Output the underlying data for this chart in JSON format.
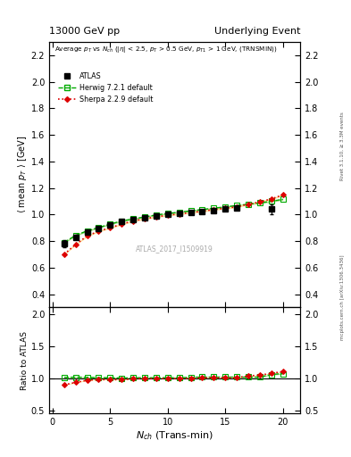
{
  "title_left": "13000 GeV pp",
  "title_right": "Underlying Event",
  "ylabel_main": "⟨ mean p_T ⟩ [GeV]",
  "ylabel_ratio": "Ratio to ATLAS",
  "xlabel": "N_{ch} (Trans-min)",
  "watermark": "ATLAS_2017_I1509919",
  "right_label1": "Rivet 3.1.10, ≥ 3.3M events",
  "right_label2": "mcplots.cern.ch [arXiv:1306.3436]",
  "ylim_main": [
    0.3,
    2.3
  ],
  "ylim_ratio": [
    0.45,
    2.1
  ],
  "yticks_main": [
    0.4,
    0.6,
    0.8,
    1.0,
    1.2,
    1.4,
    1.6,
    1.8,
    2.0,
    2.2
  ],
  "yticks_ratio": [
    0.5,
    1.0,
    1.5,
    2.0
  ],
  "xlim": [
    -0.3,
    21.5
  ],
  "xticks": [
    0,
    5,
    10,
    15,
    20
  ],
  "atlas_x": [
    1,
    2,
    3,
    4,
    5,
    6,
    7,
    8,
    9,
    10,
    11,
    12,
    13,
    14,
    15,
    16,
    19
  ],
  "atlas_y": [
    0.78,
    0.83,
    0.865,
    0.895,
    0.92,
    0.95,
    0.96,
    0.975,
    0.99,
    1.0,
    1.01,
    1.015,
    1.02,
    1.03,
    1.04,
    1.05,
    1.04
  ],
  "atlas_yerr": [
    0.025,
    0.018,
    0.013,
    0.011,
    0.01,
    0.009,
    0.009,
    0.008,
    0.008,
    0.008,
    0.008,
    0.009,
    0.009,
    0.01,
    0.011,
    0.013,
    0.035
  ],
  "herwig_x": [
    1,
    2,
    3,
    4,
    5,
    6,
    7,
    8,
    9,
    10,
    11,
    12,
    13,
    14,
    15,
    16,
    17,
    18,
    19,
    20
  ],
  "herwig_y": [
    0.79,
    0.843,
    0.877,
    0.902,
    0.928,
    0.952,
    0.967,
    0.982,
    0.997,
    1.008,
    1.018,
    1.028,
    1.038,
    1.048,
    1.058,
    1.068,
    1.078,
    1.088,
    1.1,
    1.115
  ],
  "herwig_band_lo": [
    0.784,
    0.837,
    0.871,
    0.896,
    0.922,
    0.946,
    0.961,
    0.976,
    0.991,
    1.002,
    1.012,
    1.022,
    1.032,
    1.042,
    1.052,
    1.062,
    1.072,
    1.082,
    1.094,
    1.108
  ],
  "herwig_band_hi": [
    0.796,
    0.849,
    0.883,
    0.908,
    0.934,
    0.958,
    0.973,
    0.988,
    1.003,
    1.014,
    1.024,
    1.034,
    1.044,
    1.054,
    1.064,
    1.074,
    1.084,
    1.094,
    1.106,
    1.122
  ],
  "sherpa_x": [
    1,
    2,
    3,
    4,
    5,
    6,
    7,
    8,
    9,
    10,
    11,
    12,
    13,
    14,
    15,
    16,
    17,
    18,
    19,
    20
  ],
  "sherpa_y": [
    0.7,
    0.775,
    0.838,
    0.875,
    0.9,
    0.928,
    0.952,
    0.968,
    0.983,
    0.995,
    1.005,
    1.015,
    1.025,
    1.038,
    1.048,
    1.058,
    1.078,
    1.095,
    1.118,
    1.148
  ],
  "sherpa_band_lo": [
    0.694,
    0.769,
    0.832,
    0.869,
    0.894,
    0.922,
    0.946,
    0.962,
    0.977,
    0.989,
    0.999,
    1.009,
    1.019,
    1.032,
    1.042,
    1.052,
    1.072,
    1.089,
    1.112,
    1.142
  ],
  "sherpa_band_hi": [
    0.706,
    0.781,
    0.844,
    0.881,
    0.906,
    0.934,
    0.958,
    0.974,
    0.989,
    1.001,
    1.011,
    1.021,
    1.031,
    1.044,
    1.054,
    1.064,
    1.084,
    1.101,
    1.124,
    1.154
  ],
  "herwig_ratio_y": [
    1.013,
    1.016,
    1.014,
    1.008,
    1.009,
    1.002,
    1.007,
    1.007,
    1.007,
    1.008,
    1.008,
    1.013,
    1.018,
    1.017,
    1.017,
    1.017,
    1.017,
    1.017,
    1.058,
    1.072
  ],
  "herwig_ratio_band_lo": [
    1.005,
    1.008,
    1.007,
    1.001,
    1.002,
    0.996,
    1.001,
    1.001,
    1.001,
    1.002,
    1.002,
    1.007,
    1.012,
    1.011,
    1.011,
    1.011,
    1.011,
    1.011,
    1.05,
    1.06
  ],
  "herwig_ratio_band_hi": [
    1.021,
    1.024,
    1.021,
    1.015,
    1.016,
    1.008,
    1.013,
    1.013,
    1.013,
    1.014,
    1.014,
    1.019,
    1.024,
    1.023,
    1.023,
    1.023,
    1.023,
    1.023,
    1.066,
    1.084
  ],
  "sherpa_ratio_y": [
    0.897,
    0.934,
    0.968,
    0.978,
    0.978,
    0.977,
    0.992,
    0.993,
    0.993,
    0.995,
    0.995,
    1.0,
    1.005,
    1.008,
    1.008,
    1.008,
    1.035,
    1.048,
    1.075,
    1.104
  ],
  "sherpa_ratio_band_lo": [
    0.89,
    0.927,
    0.962,
    0.972,
    0.972,
    0.971,
    0.986,
    0.987,
    0.987,
    0.989,
    0.989,
    0.994,
    0.999,
    1.002,
    1.002,
    1.002,
    1.03,
    1.043,
    1.07,
    1.099
  ],
  "sherpa_ratio_band_hi": [
    0.904,
    0.941,
    0.974,
    0.984,
    0.984,
    0.983,
    0.998,
    0.999,
    0.999,
    1.001,
    1.001,
    1.006,
    1.011,
    1.014,
    1.014,
    1.014,
    1.04,
    1.053,
    1.08,
    1.109
  ],
  "atlas_color": "#000000",
  "herwig_color": "#00aa00",
  "sherpa_color": "#dd0000",
  "herwig_band_color": "#aadd88",
  "sherpa_band_color": "#ffdd99",
  "bg_color": "#ffffff"
}
